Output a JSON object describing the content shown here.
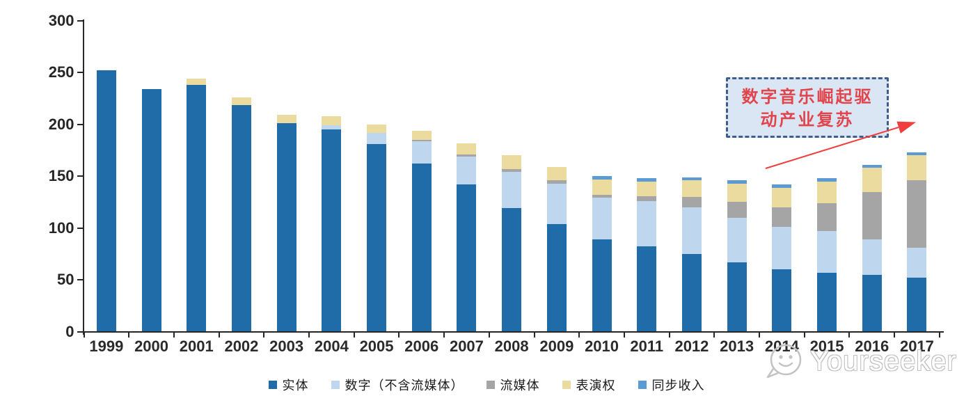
{
  "chart_data": {
    "type": "stacked-bar",
    "title": "",
    "categories": [
      "1999",
      "2000",
      "2001",
      "2002",
      "2003",
      "2004",
      "2005",
      "2006",
      "2007",
      "2008",
      "2009",
      "2010",
      "2011",
      "2012",
      "2013",
      "2014",
      "2015",
      "2016",
      "2017"
    ],
    "series": [
      {
        "name": "实体",
        "color": "#1F6CA9",
        "values": [
          252,
          234,
          238,
          219,
          201,
          195,
          181,
          162,
          142,
          119,
          104,
          89,
          82,
          75,
          67,
          60,
          57,
          55,
          52
        ]
      },
      {
        "name": "数字（不含流媒体）",
        "color": "#BFD7EE",
        "values": [
          0,
          0,
          0,
          0,
          0,
          4,
          11,
          22,
          27,
          35,
          39,
          40,
          44,
          45,
          43,
          41,
          40,
          34,
          29
        ]
      },
      {
        "name": "流媒体",
        "color": "#A5A5A5",
        "values": [
          0,
          0,
          0,
          0,
          0,
          0,
          0,
          1,
          2,
          3,
          3,
          3,
          5,
          10,
          15,
          19,
          27,
          46,
          65
        ]
      },
      {
        "name": "表演权",
        "color": "#EBDB9E",
        "values": [
          0,
          0,
          6,
          7,
          8,
          9,
          8,
          9,
          11,
          13,
          13,
          15,
          14,
          16,
          18,
          19,
          21,
          23,
          24
        ]
      },
      {
        "name": "同步收入",
        "color": "#5B9BD5",
        "values": [
          0,
          0,
          0,
          0,
          0,
          0,
          0,
          0,
          0,
          0,
          0,
          3,
          3,
          3,
          3,
          3,
          3,
          3,
          3
        ]
      }
    ],
    "ylim": [
      0,
      300
    ],
    "yticks": [
      0,
      50,
      100,
      150,
      200,
      250,
      300
    ],
    "xlabel": "",
    "ylabel": "",
    "grid": false,
    "legend_position": "bottom"
  },
  "annotation": {
    "line1": "数字音乐崛起驱",
    "line2": "动产业复苏",
    "text_color": "#E2444C",
    "box_bg": "#DAE6F3",
    "border_color": "#3F5E8C",
    "arrow_color": "#F03E3E"
  },
  "watermark": {
    "text": "Yourseeker",
    "icon": "chat-smiley-icon",
    "color": "#BFBFBF"
  },
  "axis_color": "#262626"
}
